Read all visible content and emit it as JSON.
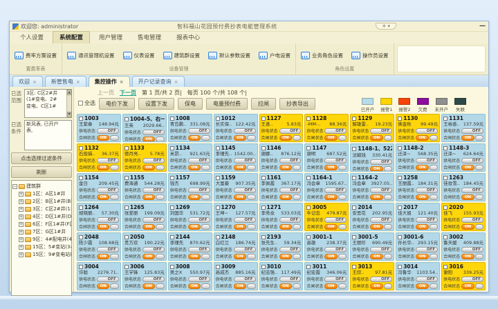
{
  "window": {
    "welcome": "欢迎您: administrator",
    "title": "智科福山花园预付费抄表电能管理系统",
    "collapse_icons": "✳ ▾",
    "minimize": "—"
  },
  "menubar": {
    "items": [
      "个人设置",
      "系统配置",
      "用户管理",
      "售电管理",
      "报表中心"
    ],
    "active_index": 1
  },
  "ribbon": {
    "groups": [
      {
        "label": "置费率表",
        "buttons": [
          "费率方案设置"
        ]
      },
      {
        "label": "设备管理",
        "buttons": [
          "通讯管理机设置",
          "仪表设置",
          "建筑群设置",
          "默认参数设置",
          "户电设置"
        ]
      },
      {
        "label": "角色设置",
        "buttons": [
          "业务角色设置",
          "操作员设置"
        ]
      }
    ]
  },
  "tabs": {
    "items": [
      "欢迎",
      "新管售电",
      "集控操作",
      "开户记录查询"
    ],
    "active_index": 2,
    "close_glyph": "×"
  },
  "pagination": {
    "prev": "上一页",
    "next": "下一页",
    "page_info": "第 1 页/共 2 页|",
    "count_info": "每页 100 个/共 108 个|"
  },
  "toolbar": {
    "select_all": "全选",
    "buttons": [
      "电价下发",
      "设置下发",
      "保电",
      "电量预付费",
      "拉闸",
      "抄表导出"
    ]
  },
  "legend": {
    "items": [
      {
        "label": "已开户",
        "color": "#b7dcea"
      },
      {
        "label": "报警1",
        "color": "#ffd400"
      },
      {
        "label": "报警2",
        "color": "#f8440b"
      },
      {
        "label": "欠费",
        "color": "#8d0f9e"
      },
      {
        "label": "未开户",
        "color": "#8f8f8f"
      },
      {
        "label": "失联",
        "color": "#2e4a48"
      }
    ]
  },
  "sidebar": {
    "scope_label": "已选范围",
    "scope_lines": [
      "3区: C区2#井",
      "(1#变电、2#",
      "变电、C区1#"
    ],
    "cond_label": "已选条件",
    "cond_lines": [
      "新风表, 已开户",
      "表,"
    ],
    "filter_button": "点击选择过滤条件",
    "refresh_button": "刷新",
    "tree": {
      "root": "建筑群",
      "items": [
        "1区：A区1#井",
        "2区：B区1#井(B区",
        "3区：C区2#井(1#",
        "4区：D区1#井(D",
        "6区：F区1#井(F区",
        "7区：G区1#井",
        "9区：4#配电井(4",
        "15区：5#变站(3#",
        "15区：9#变电站("
      ]
    }
  },
  "cards": {
    "supply_label": "供电状态",
    "supply_value": "OFF",
    "breaker_label": "合闸状态",
    "breaker_value": "ON",
    "items": [
      {
        "id": "1003",
        "name": "王紫春",
        "amount": "148.94元",
        "state": "blue"
      },
      {
        "id": "1004-5、右一",
        "name": "王英",
        "amount": "2029.66..",
        "state": "blue"
      },
      {
        "id": "1008",
        "name": "青岛鹏..",
        "amount": "331.08元",
        "state": "blue"
      },
      {
        "id": "1012",
        "name": "长实保..",
        "amount": "122.42元",
        "state": "blue"
      },
      {
        "id": "1127",
        "name": "王善..",
        "amount": "5.83元",
        "state": "yellow"
      },
      {
        "id": "1128",
        "name": "-MM-..",
        "amount": "88.36元",
        "state": "yellow"
      },
      {
        "id": "1129",
        "name": "解雄雷..",
        "amount": "19.23元",
        "state": "yellow"
      },
      {
        "id": "1130",
        "name": "佛金秋",
        "amount": "99.49元",
        "state": "yellow"
      },
      {
        "id": "1131",
        "name": "王裕香..",
        "amount": "137.59元",
        "state": "blue"
      },
      {
        "id": "1132",
        "name": "石俊娟..",
        "amount": "36.37元",
        "state": "yellow"
      },
      {
        "id": "1133",
        "name": "德月亮..",
        "amount": "5.78元",
        "state": "yellow"
      },
      {
        "id": "1134",
        "name": "米昂..",
        "amount": "921.63元",
        "state": "blue"
      },
      {
        "id": "1145",
        "name": "李瑾先..",
        "amount": "1542.00..",
        "state": "blue"
      },
      {
        "id": "1146",
        "name": "谢娜..",
        "amount": "876.12元",
        "state": "blue"
      },
      {
        "id": "1147",
        "name": "谢明",
        "amount": "687.52元",
        "state": "blue"
      },
      {
        "id": "1148-1、522",
        "name": "沈毓钱",
        "amount": "330.41元",
        "state": "blue"
      },
      {
        "id": "1148-2",
        "name": "迁泽~",
        "amount": "568.35元",
        "state": "blue"
      },
      {
        "id": "1148-3",
        "name": "迁泽~",
        "amount": "624.64元",
        "state": "blue"
      },
      {
        "id": "1154",
        "name": "金日",
        "amount": "209.45元",
        "state": "blue"
      },
      {
        "id": "1155",
        "name": "费海通",
        "amount": "544.28元",
        "state": "blue"
      },
      {
        "id": "1157",
        "name": "钱杰",
        "amount": "698.99元",
        "state": "blue"
      },
      {
        "id": "1159",
        "name": "大富豪",
        "amount": "907.35元",
        "state": "blue"
      },
      {
        "id": "1161",
        "name": "李佩霞",
        "amount": "367.17元",
        "state": "blue"
      },
      {
        "id": "1164-1",
        "name": "冯会章",
        "amount": "1595.67..",
        "state": "blue"
      },
      {
        "id": "1164-2",
        "name": "冯会章",
        "amount": "3927.05..",
        "state": "blue"
      },
      {
        "id": "1258",
        "name": "王丽霞..",
        "amount": "184.31元",
        "state": "blue"
      },
      {
        "id": "1263",
        "name": "佳妆雪..",
        "amount": "184.45元",
        "state": "blue"
      },
      {
        "id": "1264",
        "name": "胡晓丽..",
        "amount": "57.30元",
        "state": "blue"
      },
      {
        "id": "1265",
        "name": "张爱丽",
        "amount": "199.09元",
        "state": "blue"
      },
      {
        "id": "1269",
        "name": "刘国华",
        "amount": "531.72元",
        "state": "blue"
      },
      {
        "id": "1270",
        "name": "王坤~",
        "amount": "127.57元",
        "state": "blue"
      },
      {
        "id": "1271",
        "name": "李秀氽",
        "amount": "533.03元",
        "state": "blue"
      },
      {
        "id": "3005",
        "name": "牛记忠",
        "amount": "479.87元",
        "state": "yellow"
      },
      {
        "id": "2014",
        "name": "安思花",
        "amount": "202.95元",
        "state": "blue"
      },
      {
        "id": "2017",
        "name": "佳大姐",
        "amount": "121.40元",
        "state": "blue"
      },
      {
        "id": "2020",
        "name": "佳飞",
        "amount": "155.93元",
        "state": "yellow"
      },
      {
        "id": "2048",
        "name": "陈少霞",
        "amount": "108.68元",
        "state": "blue"
      },
      {
        "id": "2050",
        "name": "贵方欢",
        "amount": "190.22元",
        "state": "blue"
      },
      {
        "id": "2144",
        "name": "李瑾先",
        "amount": "870.62元",
        "state": "blue"
      },
      {
        "id": "2148",
        "name": "白红兰",
        "amount": "186.74元",
        "state": "blue"
      },
      {
        "id": "2193",
        "name": "张先生..",
        "amount": "59.34元",
        "state": "blue"
      },
      {
        "id": "3001-1",
        "name": "高雄",
        "amount": "238.37元",
        "state": "blue"
      },
      {
        "id": "3001-5",
        "name": "王丽珍",
        "amount": "690.49元",
        "state": "blue"
      },
      {
        "id": "3001-6",
        "name": "孙长华..",
        "amount": "293.15元",
        "state": "blue"
      },
      {
        "id": "3002",
        "name": "鲁天媛",
        "amount": "409.88元",
        "state": "blue"
      },
      {
        "id": "3004",
        "name": "许聪",
        "amount": "2276.71..",
        "state": "blue"
      },
      {
        "id": "3006",
        "name": "王学锋",
        "amount": "125.83元",
        "state": "blue"
      },
      {
        "id": "3008",
        "name": "吴之X",
        "amount": "550.97元",
        "state": "blue"
      },
      {
        "id": "3009",
        "name": "高成杰",
        "amount": "885.16元",
        "state": "blue"
      },
      {
        "id": "3010",
        "name": "纪志强..",
        "amount": "117.49元",
        "state": "blue"
      },
      {
        "id": "3011",
        "name": "纪宏霞",
        "amount": "346.06元",
        "state": "blue"
      },
      {
        "id": "3013",
        "name": "王欣..",
        "amount": "97.81元",
        "state": "yellow"
      },
      {
        "id": "3014",
        "name": "冯鲁华",
        "amount": "1103.54..",
        "state": "blue"
      },
      {
        "id": "3016",
        "name": "谢阳",
        "amount": "339.25元",
        "state": "yellow"
      }
    ]
  }
}
